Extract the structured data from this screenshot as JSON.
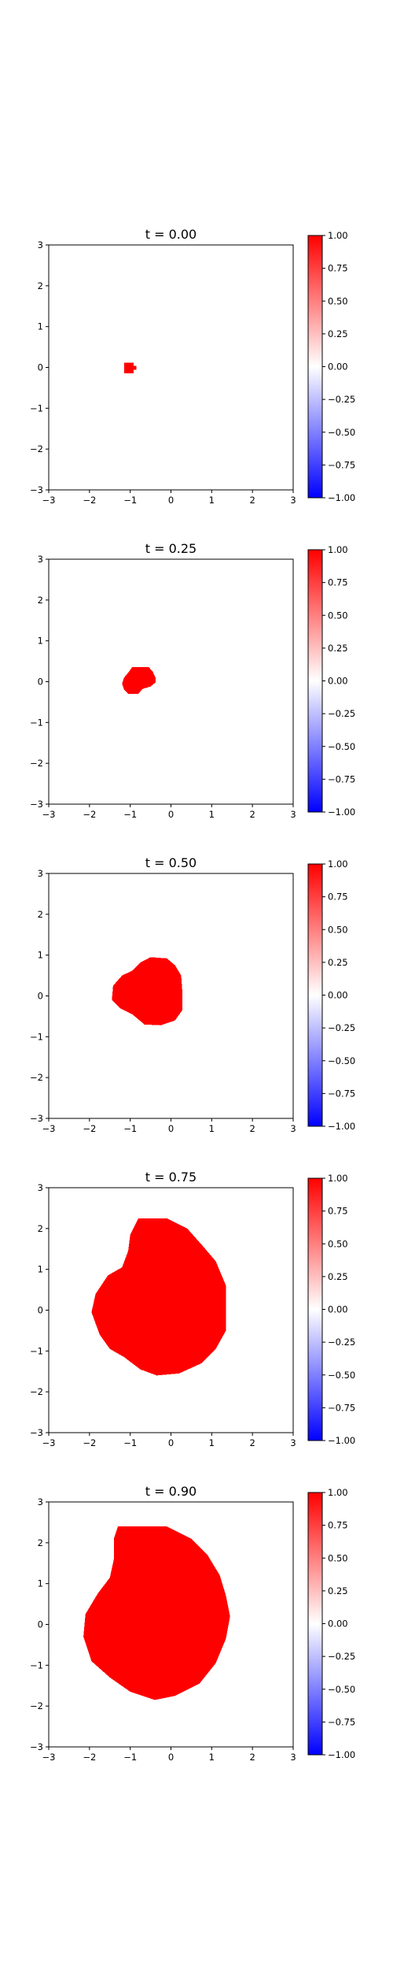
{
  "colors": {
    "positive": "#ff0000",
    "negative": "#0000ff",
    "zero": "#ffffff",
    "frame": "#000000",
    "page_background": "#ffffff"
  },
  "chart_data": [
    {
      "type": "heatmap",
      "title": "t = 0.00",
      "xlabel": "",
      "ylabel": "",
      "xlim": [
        -3,
        3
      ],
      "ylim": [
        -3,
        3
      ],
      "xticks": [
        "−3",
        "−2",
        "−1",
        "0",
        "1",
        "2",
        "3"
      ],
      "yticks": [
        "−3",
        "−2",
        "−1",
        "0",
        "1",
        "2",
        "3"
      ],
      "colormap": "bwr",
      "vmin": -1,
      "vmax": 1,
      "colorbar_ticks": [
        "1.00",
        "0.75",
        "0.50",
        "0.25",
        "0.00",
        "−0.25",
        "−0.50",
        "−0.75",
        "−1.00"
      ],
      "grid": false,
      "field_value_inside": 1.0,
      "field_value_outside": 0.0,
      "region_boundary": [
        [
          -1.15,
          0.12
        ],
        [
          -0.92,
          0.12
        ],
        [
          -0.92,
          0.04
        ],
        [
          -0.85,
          0.04
        ],
        [
          -0.85,
          -0.06
        ],
        [
          -0.92,
          -0.06
        ],
        [
          -0.92,
          -0.14
        ],
        [
          -1.15,
          -0.14
        ]
      ]
    },
    {
      "type": "heatmap",
      "title": "t = 0.25",
      "xlabel": "",
      "ylabel": "",
      "xlim": [
        -3,
        3
      ],
      "ylim": [
        -3,
        3
      ],
      "xticks": [
        "−3",
        "−2",
        "−1",
        "0",
        "1",
        "2",
        "3"
      ],
      "yticks": [
        "−3",
        "−2",
        "−1",
        "0",
        "1",
        "2",
        "3"
      ],
      "colormap": "bwr",
      "vmin": -1,
      "vmax": 1,
      "colorbar_ticks": [
        "1.00",
        "0.75",
        "0.50",
        "0.25",
        "0.00",
        "−0.25",
        "−0.50",
        "−0.75",
        "−1.00"
      ],
      "grid": false,
      "field_value_inside": 1.0,
      "field_value_outside": 0.0,
      "region_boundary": [
        [
          -0.95,
          0.36
        ],
        [
          -0.55,
          0.36
        ],
        [
          -0.45,
          0.25
        ],
        [
          -0.38,
          0.1
        ],
        [
          -0.38,
          -0.02
        ],
        [
          -0.5,
          -0.12
        ],
        [
          -0.7,
          -0.18
        ],
        [
          -0.8,
          -0.3
        ],
        [
          -1.05,
          -0.3
        ],
        [
          -1.15,
          -0.2
        ],
        [
          -1.2,
          -0.05
        ],
        [
          -1.15,
          0.1
        ],
        [
          -1.05,
          0.22
        ]
      ]
    },
    {
      "type": "heatmap",
      "title": "t = 0.50",
      "xlabel": "",
      "ylabel": "",
      "xlim": [
        -3,
        3
      ],
      "ylim": [
        -3,
        3
      ],
      "xticks": [
        "−3",
        "−2",
        "−1",
        "0",
        "1",
        "2",
        "3"
      ],
      "yticks": [
        "−3",
        "−2",
        "−1",
        "0",
        "1",
        "2",
        "3"
      ],
      "colormap": "bwr",
      "vmin": -1,
      "vmax": 1,
      "colorbar_ticks": [
        "1.00",
        "0.75",
        "0.50",
        "0.25",
        "0.00",
        "−0.25",
        "−0.50",
        "−0.75",
        "−1.00"
      ],
      "grid": false,
      "field_value_inside": 1.0,
      "field_value_outside": 0.0,
      "region_boundary": [
        [
          -0.5,
          0.95
        ],
        [
          -0.1,
          0.92
        ],
        [
          0.1,
          0.75
        ],
        [
          0.25,
          0.5
        ],
        [
          0.28,
          0.1
        ],
        [
          0.28,
          -0.35
        ],
        [
          0.1,
          -0.6
        ],
        [
          -0.25,
          -0.72
        ],
        [
          -0.65,
          -0.7
        ],
        [
          -0.95,
          -0.45
        ],
        [
          -1.25,
          -0.3
        ],
        [
          -1.45,
          -0.1
        ],
        [
          -1.42,
          0.25
        ],
        [
          -1.2,
          0.5
        ],
        [
          -0.95,
          0.62
        ],
        [
          -0.75,
          0.82
        ]
      ]
    },
    {
      "type": "heatmap",
      "title": "t = 0.75",
      "xlabel": "",
      "ylabel": "",
      "xlim": [
        -3,
        3
      ],
      "ylim": [
        -3,
        3
      ],
      "xticks": [
        "−3",
        "−2",
        "−1",
        "0",
        "1",
        "2",
        "3"
      ],
      "yticks": [
        "−3",
        "−2",
        "−1",
        "0",
        "1",
        "2",
        "3"
      ],
      "colormap": "bwr",
      "vmin": -1,
      "vmax": 1,
      "colorbar_ticks": [
        "1.00",
        "0.75",
        "0.50",
        "0.25",
        "0.00",
        "−0.25",
        "−0.50",
        "−0.75",
        "−1.00"
      ],
      "grid": false,
      "field_value_inside": 1.0,
      "field_value_outside": 0.0,
      "region_boundary": [
        [
          -0.8,
          2.25
        ],
        [
          -0.1,
          2.25
        ],
        [
          0.4,
          2.0
        ],
        [
          0.8,
          1.55
        ],
        [
          1.1,
          1.2
        ],
        [
          1.35,
          0.6
        ],
        [
          1.35,
          -0.5
        ],
        [
          1.1,
          -0.95
        ],
        [
          0.75,
          -1.3
        ],
        [
          0.2,
          -1.55
        ],
        [
          -0.35,
          -1.6
        ],
        [
          -0.75,
          -1.45
        ],
        [
          -1.15,
          -1.15
        ],
        [
          -1.5,
          -0.95
        ],
        [
          -1.75,
          -0.6
        ],
        [
          -1.95,
          -0.05
        ],
        [
          -1.85,
          0.4
        ],
        [
          -1.55,
          0.85
        ],
        [
          -1.2,
          1.05
        ],
        [
          -1.05,
          1.45
        ],
        [
          -1.0,
          1.85
        ]
      ]
    },
    {
      "type": "heatmap",
      "title": "t = 0.90",
      "xlabel": "",
      "ylabel": "",
      "xlim": [
        -3,
        3
      ],
      "ylim": [
        -3,
        3
      ],
      "xticks": [
        "−3",
        "−2",
        "−1",
        "0",
        "1",
        "2",
        "3"
      ],
      "yticks": [
        "−3",
        "−2",
        "−1",
        "0",
        "1",
        "2",
        "3"
      ],
      "colormap": "bwr",
      "vmin": -1,
      "vmax": 1,
      "colorbar_ticks": [
        "1.00",
        "0.75",
        "0.50",
        "0.25",
        "0.00",
        "−0.25",
        "−0.50",
        "−0.75",
        "−1.00"
      ],
      "grid": false,
      "field_value_inside": 1.0,
      "field_value_outside": 0.0,
      "region_boundary": [
        [
          -1.3,
          2.4
        ],
        [
          -0.1,
          2.4
        ],
        [
          0.5,
          2.1
        ],
        [
          0.9,
          1.7
        ],
        [
          1.2,
          1.2
        ],
        [
          1.35,
          0.7
        ],
        [
          1.45,
          0.2
        ],
        [
          1.35,
          -0.35
        ],
        [
          1.1,
          -0.95
        ],
        [
          0.7,
          -1.45
        ],
        [
          0.1,
          -1.75
        ],
        [
          -0.4,
          -1.85
        ],
        [
          -1.0,
          -1.65
        ],
        [
          -1.5,
          -1.3
        ],
        [
          -1.95,
          -0.9
        ],
        [
          -2.15,
          -0.3
        ],
        [
          -2.1,
          0.25
        ],
        [
          -1.8,
          0.75
        ],
        [
          -1.5,
          1.15
        ],
        [
          -1.4,
          1.6
        ],
        [
          -1.4,
          2.1
        ]
      ]
    }
  ]
}
